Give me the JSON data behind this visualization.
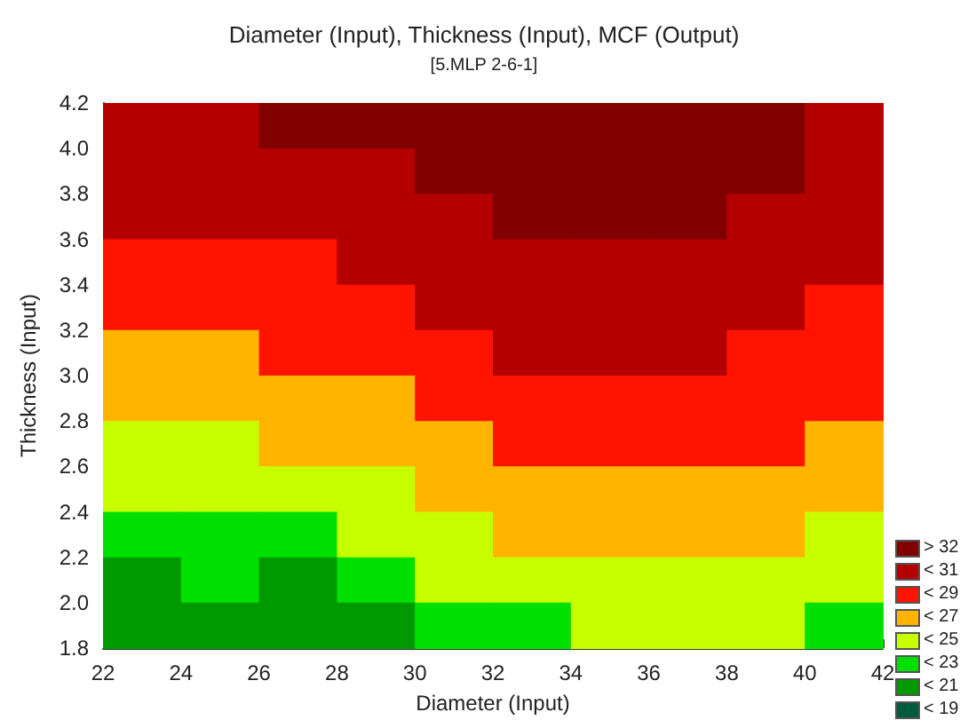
{
  "chart_data": {
    "type": "heatmap",
    "title": "Diameter (Input), Thickness (Input), MCF (Output)",
    "subtitle": "[5.MLP 2-6-1]",
    "xlabel": "Diameter (Input)",
    "ylabel": "Thickness (Input)",
    "x": [
      23,
      25,
      27,
      29,
      31,
      33,
      35,
      37,
      39,
      41
    ],
    "y": [
      4.1,
      3.9,
      3.7,
      3.5,
      3.3,
      3.1,
      2.9,
      2.7,
      2.5,
      2.3,
      2.1,
      1.9
    ],
    "cells": [
      [
        30,
        30,
        33,
        33,
        33,
        33,
        33,
        33,
        33,
        30
      ],
      [
        30,
        30,
        30,
        30,
        33,
        33,
        33,
        33,
        33,
        30
      ],
      [
        30,
        30,
        30,
        30,
        30,
        33,
        33,
        33,
        30,
        30
      ],
      [
        28,
        28,
        28,
        30,
        30,
        30,
        30,
        30,
        30,
        30
      ],
      [
        28,
        28,
        28,
        28,
        30,
        30,
        30,
        30,
        30,
        28
      ],
      [
        26,
        26,
        28,
        28,
        28,
        30,
        30,
        30,
        28,
        28
      ],
      [
        26,
        26,
        26,
        26,
        28,
        28,
        28,
        28,
        28,
        28
      ],
      [
        24,
        24,
        26,
        26,
        26,
        28,
        28,
        28,
        28,
        26
      ],
      [
        24,
        24,
        24,
        24,
        26,
        26,
        26,
        26,
        26,
        26
      ],
      [
        22,
        22,
        22,
        24,
        24,
        26,
        26,
        26,
        26,
        24
      ],
      [
        20,
        22,
        20,
        22,
        24,
        24,
        24,
        24,
        24,
        24
      ],
      [
        20,
        20,
        20,
        20,
        22,
        22,
        24,
        24,
        24,
        22
      ]
    ],
    "xlim": [
      22,
      42
    ],
    "xticks": [
      22,
      24,
      26,
      28,
      30,
      32,
      34,
      36,
      38,
      40,
      42
    ],
    "ylim": [
      1.8,
      4.2
    ],
    "yticks": [
      1.8,
      {
        "value": 2,
        "label": "2.0"
      },
      2.2,
      2.4,
      2.6,
      2.8,
      {
        "value": 3,
        "label": "3.0"
      },
      3.2,
      3.4,
      3.6,
      3.8,
      {
        "value": 4,
        "label": "4.0"
      },
      4.2
    ],
    "cticks": [
      {
        "value": 19,
        "label": "< 19"
      },
      {
        "value": 21,
        "label": "< 21"
      },
      {
        "value": 23,
        "label": "< 23"
      },
      {
        "value": 25,
        "label": "< 25"
      },
      {
        "value": 27,
        "label": "< 27"
      },
      {
        "value": 29,
        "label": "< 29"
      },
      {
        "value": 31,
        "label": "< 31"
      },
      {
        "value": 33,
        "label": "> 32"
      }
    ],
    "colors": [
      "#005a3c",
      "#009a00",
      "#00e000",
      "#c8ff00",
      "#ffb400",
      "#ff1400",
      "#b40000",
      "#800000"
    ]
  }
}
